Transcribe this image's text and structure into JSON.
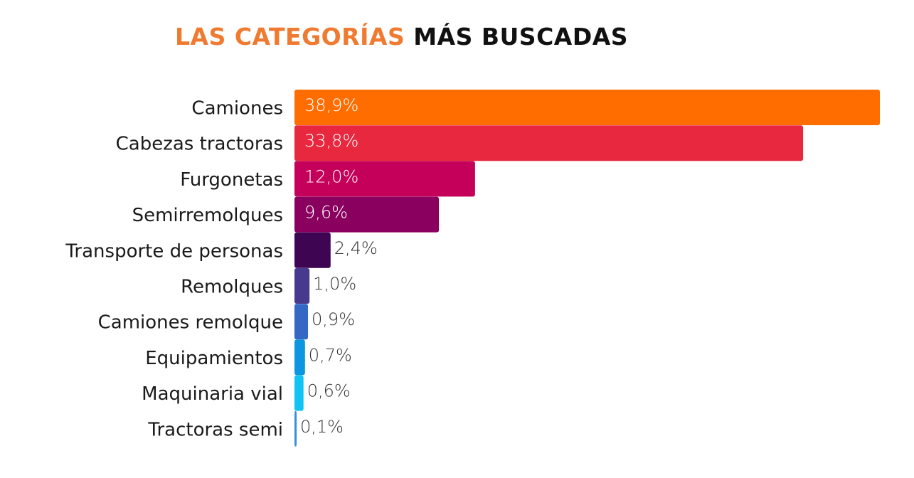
{
  "chart_data": {
    "type": "bar",
    "orientation": "horizontal",
    "title_part1": "LAS CATEGORÍAS",
    "title_part2": "MÁS BUSCADAS",
    "title_color_part1": "#ef7a30",
    "title_color_part2": "#111111",
    "categories": [
      "Camiones",
      "Cabezas tractoras",
      "Furgonetas",
      "Semirremolques",
      "Transporte de personas",
      "Remolques",
      "Camiones remolque",
      "Equipamientos",
      "Maquinaria vial",
      "Tractoras semi"
    ],
    "values": [
      38.9,
      33.8,
      12.0,
      9.6,
      2.4,
      1.0,
      0.9,
      0.7,
      0.6,
      0.1
    ],
    "value_labels": [
      "38,9%",
      "33,8%",
      "12,0%",
      "9,6%",
      "2,4%",
      "1,0%",
      "0,9%",
      "0,7%",
      "0,6%",
      "0,1%"
    ],
    "colors": [
      "#ff6d00",
      "#e8283f",
      "#c5005a",
      "#8a005f",
      "#3d0552",
      "#473a8e",
      "#3468c4",
      "#0b97e0",
      "#10c3f2",
      "#3a8fdc"
    ],
    "xlim": [
      0,
      38.9
    ],
    "grid": false,
    "legend": "none"
  }
}
